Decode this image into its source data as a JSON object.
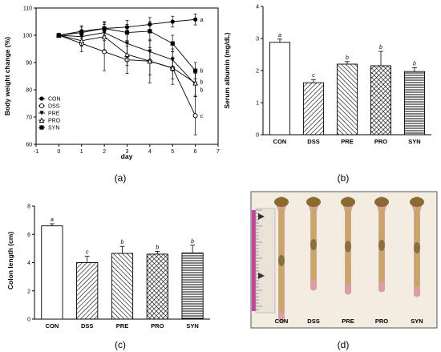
{
  "panel_labels": [
    "(a)",
    "(b)",
    "(c)",
    "(d)"
  ],
  "chart_data": [
    {
      "panel": "(a)",
      "type": "line",
      "xlabel": "day",
      "ylabel": "Body weight change (%)",
      "xlim": [
        -1,
        7
      ],
      "ylim": [
        60,
        110
      ],
      "xticks": [
        -1,
        0,
        1,
        2,
        3,
        4,
        5,
        6,
        7
      ],
      "yticks": [
        60,
        70,
        80,
        90,
        100,
        110
      ],
      "x": [
        0,
        1,
        2,
        3,
        4,
        5,
        6
      ],
      "legend_position": "lower-left",
      "series": [
        {
          "name": "CON",
          "marker": "filled-circle",
          "values": [
            100,
            101.5,
            102.5,
            103,
            104,
            105,
            105.8
          ],
          "err": [
            0,
            2,
            2.5,
            2.5,
            2.5,
            2,
            2
          ]
        },
        {
          "name": "DSS",
          "marker": "open-circle",
          "values": [
            100,
            97,
            94,
            91,
            90.5,
            88,
            70.5
          ],
          "err": [
            0,
            3,
            7,
            5,
            8,
            6,
            7
          ]
        },
        {
          "name": "PRE",
          "marker": "filled-triangle-down",
          "values": [
            100,
            99.5,
            101,
            97,
            94,
            91,
            82
          ],
          "err": [
            0,
            2,
            3,
            5,
            4,
            4,
            4
          ]
        },
        {
          "name": "PRO",
          "marker": "open-triangle-up",
          "values": [
            100,
            98,
            99.5,
            93,
            90.5,
            88,
            82.5
          ],
          "err": [
            0,
            2,
            5,
            4,
            5,
            4,
            5
          ]
        },
        {
          "name": "SYN",
          "marker": "filled-square",
          "values": [
            100,
            101,
            102.5,
            101,
            101.5,
            97,
            87
          ],
          "err": [
            0,
            2,
            2.5,
            3,
            3.5,
            3,
            3
          ]
        }
      ],
      "annotations": [
        {
          "text": "a",
          "x": 6,
          "y": 105.8
        },
        {
          "text": "b",
          "x": 6,
          "y": 87
        },
        {
          "text": "b",
          "x": 6,
          "y": 83
        },
        {
          "text": "b",
          "x": 6,
          "y": 80
        },
        {
          "text": "c",
          "x": 6,
          "y": 70.5
        }
      ]
    },
    {
      "panel": "(b)",
      "type": "bar",
      "ylabel": "Serum albumin  (mg/dL)",
      "ylim": [
        0,
        4
      ],
      "yticks": [
        0,
        1,
        2,
        3,
        4
      ],
      "categories": [
        "CON",
        "DSS",
        "PRE",
        "PRO",
        "SYN"
      ],
      "values": [
        2.88,
        1.62,
        2.2,
        2.15,
        1.97
      ],
      "err": [
        0.1,
        0.1,
        0.08,
        0.45,
        0.12
      ],
      "letters": [
        "a",
        "c",
        "b",
        "b",
        "b"
      ],
      "patterns": [
        "none",
        "diag-right",
        "diag-left",
        "crosshatch",
        "horizontal"
      ]
    },
    {
      "panel": "(c)",
      "type": "bar",
      "ylabel": "Colon length  (cm)",
      "ylim": [
        0,
        8
      ],
      "yticks": [
        0,
        2,
        4,
        6,
        8
      ],
      "categories": [
        "CON",
        "DSS",
        "PRE",
        "PRO",
        "SYN"
      ],
      "values": [
        6.6,
        4.0,
        4.65,
        4.6,
        4.68
      ],
      "err": [
        0.15,
        0.45,
        0.5,
        0.2,
        0.55
      ],
      "letters": [
        "a",
        "c",
        "b",
        "b",
        "b"
      ],
      "patterns": [
        "none",
        "diag-right",
        "diag-left",
        "crosshatch",
        "horizontal"
      ]
    }
  ],
  "photo": {
    "panel": "(d)",
    "labels": [
      "CON",
      "DSS",
      "PRE",
      "PRO",
      "SYN"
    ],
    "colors": {
      "background": "#f2ece1",
      "ruler": "#c83fa0",
      "colon": "#c4a85a",
      "tissue_pink": "#d8909b"
    }
  }
}
